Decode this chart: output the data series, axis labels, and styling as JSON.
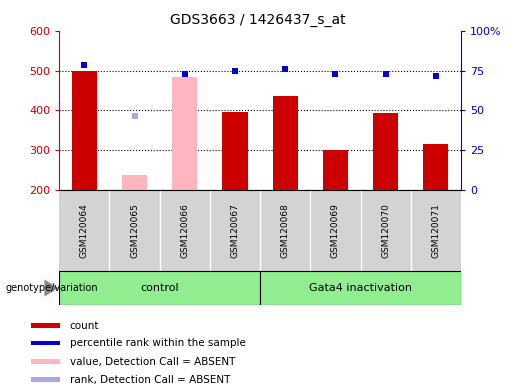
{
  "title": "GDS3663 / 1426437_s_at",
  "samples": [
    "GSM120064",
    "GSM120065",
    "GSM120066",
    "GSM120067",
    "GSM120068",
    "GSM120069",
    "GSM120070",
    "GSM120071"
  ],
  "count_values": [
    500,
    null,
    null,
    397,
    437,
    300,
    393,
    315
  ],
  "count_absent_values": [
    null,
    237,
    484,
    null,
    null,
    null,
    null,
    null
  ],
  "rank_absent_values": [
    null,
    387,
    null,
    null,
    null,
    null,
    null,
    null
  ],
  "percentile_values": [
    513,
    null,
    492,
    498,
    503,
    492,
    492,
    486
  ],
  "ylim_left": [
    200,
    600
  ],
  "ylim_right": [
    0,
    100
  ],
  "yticks_left": [
    200,
    300,
    400,
    500,
    600
  ],
  "yticks_right": [
    0,
    25,
    50,
    75,
    100
  ],
  "bar_width": 0.5,
  "count_color": "#CC0000",
  "count_absent_color": "#FFB6C1",
  "percentile_color": "#0000CC",
  "rank_absent_color": "#AAAADD",
  "control_label": "control",
  "gata4_label": "Gata4 inactivation",
  "genotype_label": "genotype/variation",
  "legend_items": [
    {
      "label": "count",
      "color": "#CC0000"
    },
    {
      "label": "percentile rank within the sample",
      "color": "#0000CC"
    },
    {
      "label": "value, Detection Call = ABSENT",
      "color": "#FFB6C1"
    },
    {
      "label": "rank, Detection Call = ABSENT",
      "color": "#AAAADD"
    }
  ],
  "grid_lines": [
    300,
    400,
    500
  ],
  "fig_width": 5.15,
  "fig_height": 3.84,
  "dpi": 100
}
